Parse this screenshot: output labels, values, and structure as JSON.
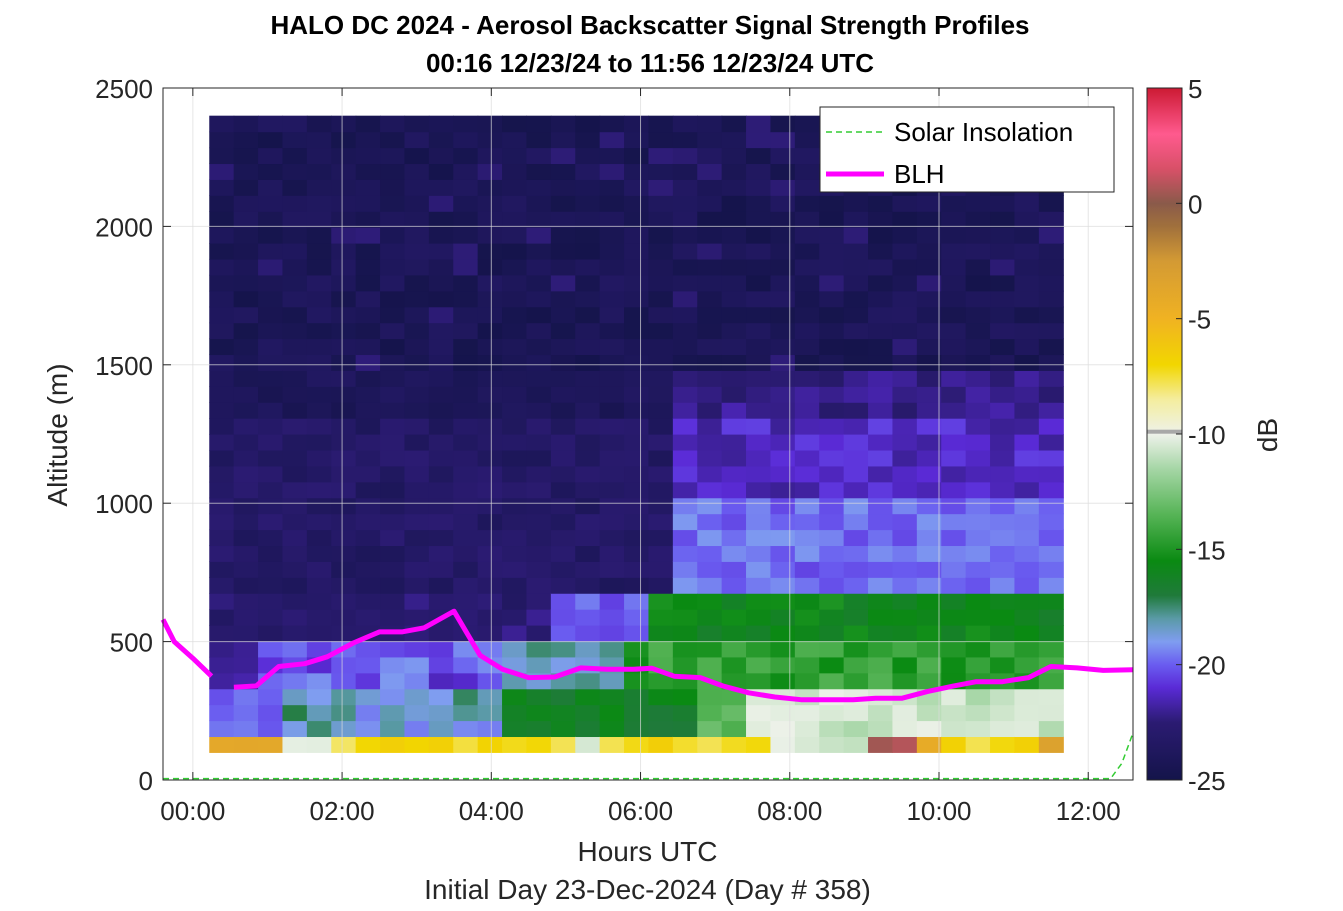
{
  "chart_data": {
    "type": "heatmap",
    "title": "HALO DC 2024 - Aerosol Backscatter Signal Strength Profiles",
    "subtitle": "00:16 12/23/24 to 11:56 12/23/24  UTC",
    "xlabel": "Hours UTC",
    "xlabel2": "Initial Day 23-Dec-2024 (Day # 358)",
    "ylabel": "Altitude (m)",
    "colorbar_label": "dB",
    "xlim": [
      -0.4,
      12.6
    ],
    "ylim": [
      0,
      2500
    ],
    "clim": [
      -25,
      5
    ],
    "x_ticks": [
      0,
      2,
      4,
      6,
      8,
      10,
      12
    ],
    "x_tick_labels": [
      "00:00",
      "02:00",
      "04:00",
      "06:00",
      "08:00",
      "10:00",
      "12:00"
    ],
    "y_ticks": [
      0,
      500,
      1000,
      1500,
      2000,
      2500
    ],
    "y_tick_labels": [
      "0",
      "500",
      "1000",
      "1500",
      "2000",
      "2500"
    ],
    "cb_ticks": [
      -25,
      -20,
      -15,
      -10,
      -5,
      0,
      5
    ],
    "cb_tick_labels": [
      "-25",
      "-20",
      "-15",
      "-10",
      "-5",
      "0",
      "5"
    ],
    "grid": true,
    "legend_position": "top-right",
    "legend": [
      {
        "label": "Solar Insolation",
        "style": "dashed",
        "color": "#33cc33"
      },
      {
        "label": "BLH",
        "style": "solid",
        "color": "#ff00ff"
      }
    ],
    "heatmap": {
      "x_start": 0.22,
      "x_step": 0.327,
      "n_cols": 35,
      "y_bottom": 100,
      "y_step": 57.5,
      "n_rows": 40
    },
    "series": [
      {
        "name": "BLH",
        "color": "#ff00ff",
        "points": [
          [
            -0.4,
            580
          ],
          [
            -0.25,
            500
          ],
          [
            0.0,
            440
          ],
          [
            0.25,
            375
          ],
          [
            0.55,
            335
          ],
          [
            0.85,
            340
          ],
          [
            1.15,
            410
          ],
          [
            1.5,
            420
          ],
          [
            1.8,
            445
          ],
          [
            2.15,
            495
          ],
          [
            2.5,
            535
          ],
          [
            2.8,
            535
          ],
          [
            3.1,
            550
          ],
          [
            3.5,
            610
          ],
          [
            3.85,
            450
          ],
          [
            4.15,
            400
          ],
          [
            4.5,
            370
          ],
          [
            4.85,
            372
          ],
          [
            5.2,
            405
          ],
          [
            5.55,
            400
          ],
          [
            5.9,
            400
          ],
          [
            6.15,
            404
          ],
          [
            6.45,
            375
          ],
          [
            6.8,
            370
          ],
          [
            7.1,
            340
          ],
          [
            7.45,
            315
          ],
          [
            7.8,
            300
          ],
          [
            8.15,
            290
          ],
          [
            8.5,
            290
          ],
          [
            8.85,
            290
          ],
          [
            9.15,
            295
          ],
          [
            9.5,
            295
          ],
          [
            9.85,
            320
          ],
          [
            10.2,
            340
          ],
          [
            10.5,
            355
          ],
          [
            10.85,
            355
          ],
          [
            11.2,
            370
          ],
          [
            11.5,
            410
          ],
          [
            11.85,
            405
          ],
          [
            12.2,
            396
          ],
          [
            12.6,
            398
          ]
        ]
      },
      {
        "name": "Solar Insolation",
        "color": "#33cc33",
        "points": [
          [
            -0.4,
            5
          ],
          [
            12.1,
            5
          ],
          [
            12.3,
            5
          ],
          [
            12.45,
            60
          ],
          [
            12.6,
            170
          ]
        ]
      }
    ],
    "colormap_stops": [
      [
        -25,
        "#14144a"
      ],
      [
        -22.5,
        "#2b1b72"
      ],
      [
        -21,
        "#5a2ad6"
      ],
      [
        -20,
        "#6a5cf0"
      ],
      [
        -19,
        "#7f9df0"
      ],
      [
        -18,
        "#5a9aa6"
      ],
      [
        -17,
        "#1f7a3a"
      ],
      [
        -15.5,
        "#0a8a12"
      ],
      [
        -13.5,
        "#56b456"
      ],
      [
        -11.5,
        "#a6d6a6"
      ],
      [
        -10,
        "#eef2ea"
      ],
      [
        -8.5,
        "#f4ed9e"
      ],
      [
        -7,
        "#f2d600"
      ],
      [
        -5,
        "#f0b222"
      ],
      [
        -2.5,
        "#d39a34"
      ],
      [
        -1,
        "#a0703c"
      ],
      [
        0,
        "#8a5a4a"
      ],
      [
        1.5,
        "#d85068"
      ],
      [
        3,
        "#ff5a8e"
      ],
      [
        5,
        "#cc1a33"
      ]
    ]
  }
}
